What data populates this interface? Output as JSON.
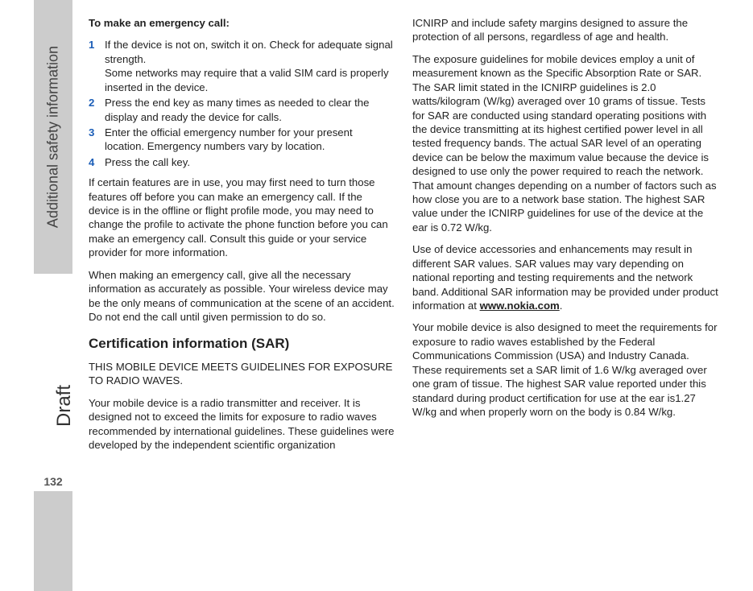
{
  "sidebar": {
    "section_label": "Additional safety information",
    "draft_label": "Draft",
    "page_number": "132",
    "bg_color": "#cccccc",
    "text_color": "#444444"
  },
  "accent_color": "#1a5db7",
  "left_column": {
    "emergency_heading": "To make an emergency call:",
    "steps": [
      {
        "main": "If the device is not on, switch it on. Check for adequate signal strength.",
        "sub": "Some networks may require that a valid SIM card is properly inserted in the device."
      },
      {
        "main": "Press the end key as many times as needed to clear the display and ready the device for calls."
      },
      {
        "main": "Enter the official emergency number for your present location. Emergency numbers vary by location."
      },
      {
        "main": "Press the call key."
      }
    ],
    "para_features": "If certain features are in use, you may first need to turn those features off before you can make an emergency call. If the device is in the offline or flight profile mode, you may need to change the profile to activate the phone function before you can make an emergency call. Consult this guide or your service provider for more information.",
    "para_info": "When making an emergency call, give all the necessary information as accurately as possible. Your wireless device may be the only means of communication at the scene of an accident. Do not end the call until given permission to do so.",
    "sar_heading": "Certification information (SAR)",
    "sar_caps": "THIS MOBILE DEVICE MEETS GUIDELINES FOR EXPOSURE TO RADIO WAVES.",
    "sar_intro": "Your mobile device is a radio transmitter and receiver. It is designed not to exceed the limits for exposure to radio waves recommended by international guidelines. These guidelines were developed by the independent scientific organization"
  },
  "right_column": {
    "para_icnirp_cont": "ICNIRP and include safety margins designed to assure the protection of all persons, regardless of age and health.",
    "para_sar_limits": "The exposure guidelines for mobile devices employ a unit of measurement known as the Specific Absorption Rate or SAR. The SAR limit stated in the ICNIRP guidelines is 2.0 watts/kilogram (W/kg) averaged over 10 grams of tissue. Tests for SAR are conducted using standard operating positions with the device transmitting at its highest certified power level in all tested frequency bands. The actual SAR level of an operating device can be below the maximum value because the device is designed to use only the power required to reach the network. That amount changes depending on a number of factors such as how close you are to a network base station. The highest SAR value under the ICNIRP guidelines for use of the device at the ear is 0.72 W/kg.",
    "para_accessories_pre": "Use of device accessories and enhancements may result in different SAR values. SAR values may vary depending on national reporting and testing requirements and the network band. Additional SAR information may be provided under product information at ",
    "link_text": "www.nokia.com",
    "para_accessories_post": ".",
    "para_fcc": "Your mobile device is also designed to meet the requirements for exposure to radio waves established by the Federal Communications Commission (USA) and Industry Canada. These requirements set a SAR limit of 1.6 W/kg averaged over one gram of tissue. The highest SAR value reported under this standard during product certification for use at the ear is1.27 W/kg and when properly worn on the body is 0.84 W/kg."
  }
}
